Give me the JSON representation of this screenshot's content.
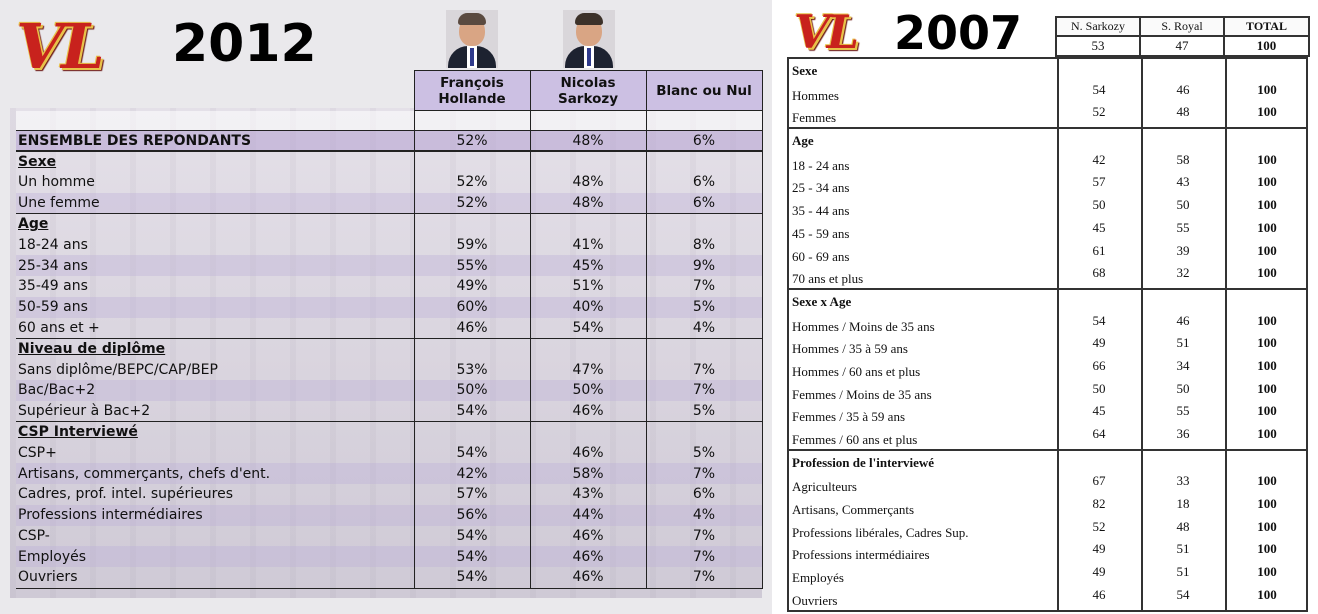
{
  "left": {
    "logo": "VL",
    "year": "2012",
    "portraits": {
      "hollande": "portrait-hollande",
      "sarkozy": "portrait-sarkozy"
    },
    "columns": [
      "François Hollande",
      "Nicolas Sarkozy",
      "Blanc ou Nul"
    ],
    "rows": [
      {
        "type": "space",
        "label": "",
        "v": [
          "",
          "",
          ""
        ]
      },
      {
        "type": "ens",
        "label": "ENSEMBLE DES REPONDANTS",
        "v": [
          "52%",
          "48%",
          "6%"
        ]
      },
      {
        "type": "sec",
        "label": "Sexe",
        "v": [
          "",
          "",
          ""
        ]
      },
      {
        "type": "row",
        "label": "Un homme",
        "v": [
          "52%",
          "48%",
          "6%"
        ]
      },
      {
        "type": "row",
        "label": "Une femme",
        "v": [
          "52%",
          "48%",
          "6%"
        ]
      },
      {
        "type": "sec",
        "label": "Age",
        "v": [
          "",
          "",
          ""
        ]
      },
      {
        "type": "row",
        "label": "18-24 ans",
        "v": [
          "59%",
          "41%",
          "8%"
        ]
      },
      {
        "type": "row",
        "label": "25-34 ans",
        "v": [
          "55%",
          "45%",
          "9%"
        ]
      },
      {
        "type": "row",
        "label": "35-49 ans",
        "v": [
          "49%",
          "51%",
          "7%"
        ]
      },
      {
        "type": "row",
        "label": "50-59 ans",
        "v": [
          "60%",
          "40%",
          "5%"
        ]
      },
      {
        "type": "row",
        "label": "60 ans et +",
        "v": [
          "46%",
          "54%",
          "4%"
        ]
      },
      {
        "type": "sec",
        "label": "Niveau de diplôme",
        "v": [
          "",
          "",
          ""
        ]
      },
      {
        "type": "row",
        "label": "Sans diplôme/BEPC/CAP/BEP",
        "v": [
          "53%",
          "47%",
          "7%"
        ]
      },
      {
        "type": "row",
        "label": "Bac/Bac+2",
        "v": [
          "50%",
          "50%",
          "7%"
        ]
      },
      {
        "type": "row",
        "label": "Supérieur à Bac+2",
        "v": [
          "54%",
          "46%",
          "5%"
        ]
      },
      {
        "type": "sec",
        "label": "CSP Interviewé",
        "v": [
          "",
          "",
          ""
        ]
      },
      {
        "type": "row",
        "label": "CSP+",
        "v": [
          "54%",
          "46%",
          "5%"
        ]
      },
      {
        "type": "row",
        "label": "Artisans, commerçants, chefs d'ent.",
        "v": [
          "42%",
          "58%",
          "7%"
        ]
      },
      {
        "type": "row",
        "label": "Cadres, prof. intel. supérieures",
        "v": [
          "57%",
          "43%",
          "6%"
        ]
      },
      {
        "type": "row",
        "label": "Professions intermédiaires",
        "v": [
          "56%",
          "44%",
          "4%"
        ]
      },
      {
        "type": "row",
        "label": "CSP-",
        "v": [
          "54%",
          "46%",
          "7%"
        ]
      },
      {
        "type": "row",
        "label": "Employés",
        "v": [
          "54%",
          "46%",
          "7%"
        ]
      },
      {
        "type": "row",
        "label": "Ouvriers",
        "v": [
          "54%",
          "46%",
          "7%"
        ]
      }
    ]
  },
  "right": {
    "logo": "VL",
    "year": "2007",
    "columns": [
      "N. Sarkozy",
      "S. Royal",
      "TOTAL"
    ],
    "totals": [
      "53",
      "47",
      "100"
    ],
    "groups": [
      {
        "title": "Sexe",
        "rows": [
          {
            "label": "Hommes",
            "v": [
              "54",
              "46",
              "100"
            ]
          },
          {
            "label": "Femmes",
            "v": [
              "52",
              "48",
              "100"
            ]
          }
        ]
      },
      {
        "title": "Age",
        "rows": [
          {
            "label": "18 - 24 ans",
            "v": [
              "42",
              "58",
              "100"
            ]
          },
          {
            "label": "25 - 34 ans",
            "v": [
              "57",
              "43",
              "100"
            ]
          },
          {
            "label": "35 - 44 ans",
            "v": [
              "50",
              "50",
              "100"
            ]
          },
          {
            "label": "45 - 59 ans",
            "v": [
              "45",
              "55",
              "100"
            ]
          },
          {
            "label": "60 - 69 ans",
            "v": [
              "61",
              "39",
              "100"
            ]
          },
          {
            "label": "70 ans et plus",
            "v": [
              "68",
              "32",
              "100"
            ]
          }
        ]
      },
      {
        "title": "Sexe x Age",
        "rows": [
          {
            "label": "Hommes / Moins de 35 ans",
            "v": [
              "54",
              "46",
              "100"
            ]
          },
          {
            "label": "Hommes / 35 à 59 ans",
            "v": [
              "49",
              "51",
              "100"
            ]
          },
          {
            "label": "Hommes / 60 ans et plus",
            "v": [
              "66",
              "34",
              "100"
            ]
          },
          {
            "label": "Femmes / Moins de 35 ans",
            "v": [
              "50",
              "50",
              "100"
            ]
          },
          {
            "label": "Femmes / 35 à 59 ans",
            "v": [
              "45",
              "55",
              "100"
            ]
          },
          {
            "label": "Femmes / 60 ans et plus",
            "v": [
              "64",
              "36",
              "100"
            ]
          }
        ]
      },
      {
        "title": "Profession de l'interviewé",
        "rows": [
          {
            "label": "Agriculteurs",
            "v": [
              "67",
              "33",
              "100"
            ]
          },
          {
            "label": "Artisans, Commerçants",
            "v": [
              "82",
              "18",
              "100"
            ]
          },
          {
            "label": "Professions libérales, Cadres Sup.",
            "v": [
              "52",
              "48",
              "100"
            ]
          },
          {
            "label": "Professions intermédiaires",
            "v": [
              "49",
              "51",
              "100"
            ]
          },
          {
            "label": "Employés",
            "v": [
              "49",
              "51",
              "100"
            ]
          },
          {
            "label": "Ouvriers",
            "v": [
              "46",
              "54",
              "100"
            ]
          }
        ]
      }
    ]
  }
}
